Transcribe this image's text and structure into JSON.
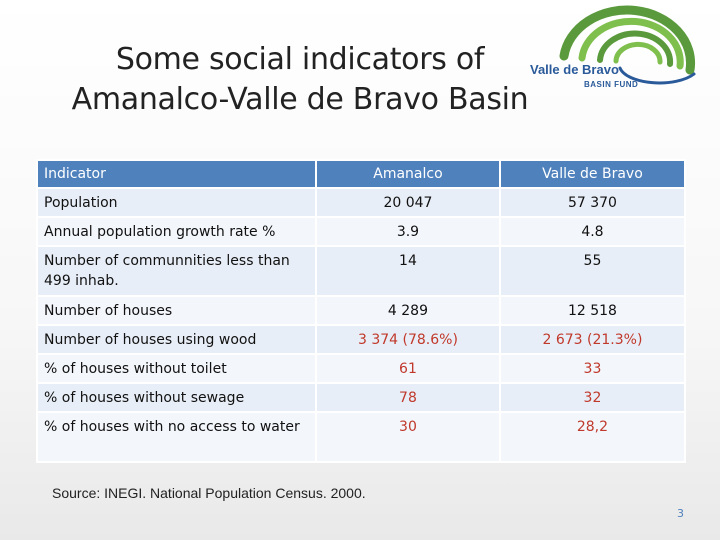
{
  "title": {
    "line1": "Some social indicators of",
    "line2": "Amanalco-Valle de Bravo Basin"
  },
  "logo": {
    "name": "Valle de Bravo",
    "subtitle": "BASIN FUND",
    "colors": [
      "#5a9a3c",
      "#7fbf4d",
      "#2a5a9a"
    ]
  },
  "table": {
    "headers": [
      "Indicator",
      "Amanalco",
      "Valle de Bravo"
    ],
    "rows": [
      {
        "indicator": "Population",
        "amanalco": "20 047",
        "valle": "57 370",
        "highlight": false
      },
      {
        "indicator": "Annual population growth rate %",
        "amanalco": "3.9",
        "valle": "4.8",
        "highlight": false
      },
      {
        "indicator": "Number of communnities less than 499 inhab.",
        "amanalco": "14",
        "valle": "55",
        "highlight": false
      },
      {
        "indicator": "Number of houses",
        "amanalco": "4 289",
        "valle": "12 518",
        "highlight": false
      },
      {
        "indicator": "Number of houses using wood",
        "amanalco": "3 374 (78.6%)",
        "valle": "2 673 (21.3%)",
        "highlight": true
      },
      {
        "indicator": "% of houses without toilet",
        "amanalco": "61",
        "valle": "33",
        "highlight": true
      },
      {
        "indicator": "% of houses without sewage",
        "amanalco": "78",
        "valle": "32",
        "highlight": true
      },
      {
        "indicator": "%  of houses with no access to water",
        "amanalco": "30",
        "valle": "28,2",
        "highlight": true
      }
    ],
    "colors": {
      "header": "#4f81bd",
      "highlight_text": "#c0392b"
    }
  },
  "source": "Source: INEGI. National Population Census. 2000.",
  "page_number": "3"
}
